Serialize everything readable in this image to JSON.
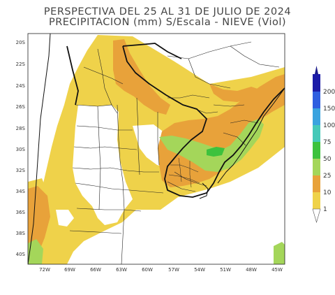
{
  "title": {
    "line1": "PERSPECTIVA DEL 25 AL 31 DE JULIO DE 2024",
    "line2": "PRECIPITACION (mm) S/Escala - NIEVE (Viol)"
  },
  "lat_labels": [
    "20S",
    "22S",
    "24S",
    "26S",
    "28S",
    "30S",
    "32S",
    "34S",
    "36S",
    "38S",
    "40S"
  ],
  "lon_labels": [
    "72W",
    "69W",
    "66W",
    "63W",
    "60W",
    "57W",
    "54W",
    "51W",
    "48W",
    "45W"
  ],
  "colorbar": {
    "labels": [
      "200",
      "150",
      "100",
      "75",
      "50",
      "25",
      "10",
      "1"
    ],
    "colors": [
      "#1c1ca8",
      "#2f5fe0",
      "#3aa3df",
      "#45c9b8",
      "#3dc23d",
      "#a4d65a",
      "#e8a23a",
      "#efd24a"
    ]
  },
  "legend_palette": {
    "1-10": "#efd24a",
    "10-25": "#e8a23a",
    "25-50": "#a4d65a",
    "50-75": "#3dc23d"
  }
}
